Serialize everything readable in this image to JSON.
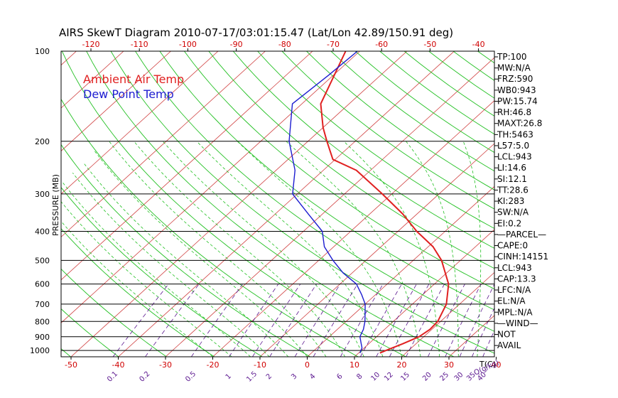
{
  "chart_data": {
    "type": "line",
    "title": "AIRS SkewT Diagram 2010-07-17/03:01:15.47 (Lat/Lon 42.89/150.91 deg)",
    "ylabel": "PRESSURE (MB)",
    "xlabel_temp": "T(C)",
    "xlabel_mixing": "Q(g/kg)",
    "pressure_axis": {
      "range": [
        1050,
        100
      ],
      "scale": "log",
      "ticks": [
        1000,
        900,
        800,
        700,
        600,
        500,
        400,
        300,
        200,
        100
      ]
    },
    "pressure_gridlines": [
      1000,
      900,
      800,
      700,
      600,
      500,
      400,
      300,
      200
    ],
    "bottom_temp_ticks": [
      -50,
      -40,
      -30,
      -20,
      -10,
      0,
      10,
      20,
      30,
      40
    ],
    "top_temp_ticks": [
      -120,
      -110,
      -100,
      -90,
      -80,
      -70,
      -60,
      -50,
      -40
    ],
    "mixing_ratio_ticks": [
      "0.1",
      "0.2",
      "0.5",
      "1",
      "1.5",
      "2",
      "3",
      "4",
      "6",
      "8",
      "10",
      "12",
      "15",
      "20",
      "25",
      "30",
      "35",
      "40"
    ],
    "legend": [
      "Ambient Air Temp",
      "Dew Point Temp"
    ],
    "series": [
      {
        "name": "Ambient Air Temp",
        "color": "#e02020",
        "points": [
          [
            1020,
            14.5
          ],
          [
            1000,
            15.2
          ],
          [
            950,
            17.2
          ],
          [
            900,
            19.0
          ],
          [
            850,
            19.6
          ],
          [
            800,
            19.4
          ],
          [
            700,
            17.2
          ],
          [
            600,
            13.0
          ],
          [
            500,
            6.0
          ],
          [
            450,
            1.0
          ],
          [
            400,
            -6.0
          ],
          [
            350,
            -13.0
          ],
          [
            300,
            -22.0
          ],
          [
            250,
            -33.0
          ],
          [
            230,
            -40.5
          ],
          [
            200,
            -46.0
          ],
          [
            180,
            -50.0
          ],
          [
            150,
            -56.0
          ],
          [
            100,
            -63.0
          ]
        ]
      },
      {
        "name": "Dew Point Temp",
        "color": "#1c1cd0",
        "points": [
          [
            1020,
            10.3
          ],
          [
            980,
            9.5
          ],
          [
            950,
            8.4
          ],
          [
            900,
            6.5
          ],
          [
            850,
            5.5
          ],
          [
            800,
            4.0
          ],
          [
            700,
            0.0
          ],
          [
            650,
            -3.0
          ],
          [
            600,
            -6.5
          ],
          [
            550,
            -12.0
          ],
          [
            500,
            -17.0
          ],
          [
            450,
            -22.0
          ],
          [
            400,
            -26.0
          ],
          [
            350,
            -33.0
          ],
          [
            300,
            -41.0
          ],
          [
            250,
            -46.0
          ],
          [
            200,
            -54.0
          ],
          [
            150,
            -62.0
          ],
          [
            120,
            -61.0
          ],
          [
            100,
            -60.5
          ]
        ]
      }
    ],
    "stats": [
      "TP:100",
      "MW:N/A",
      "FRZ:590",
      "WB0:943",
      "PW:15.74",
      "RH:46.8",
      "MAXT:26.8",
      "TH:5463",
      "L57:5.0",
      "LCL:943",
      "LI:14.6",
      "SI:12.1",
      "TT:28.6",
      "KI:283",
      "SW:N/A",
      "EI:0.2",
      "—PARCEL—",
      "CAPE:0",
      "CINH:14151",
      "LCL:943",
      "CAP:13.3",
      "LFC:N/A",
      "EL:N/A",
      "MPL:N/A",
      "—WIND—",
      "NOT",
      "AVAIL"
    ],
    "colors": {
      "temp": "#e02020",
      "dewpoint": "#1c1cd0",
      "isotherm": "#d04040",
      "dry_adiabat": "#22c022",
      "moist_adiabat": "#22c022",
      "mixing_ratio": "#5a168f",
      "grid": "#000000"
    }
  }
}
